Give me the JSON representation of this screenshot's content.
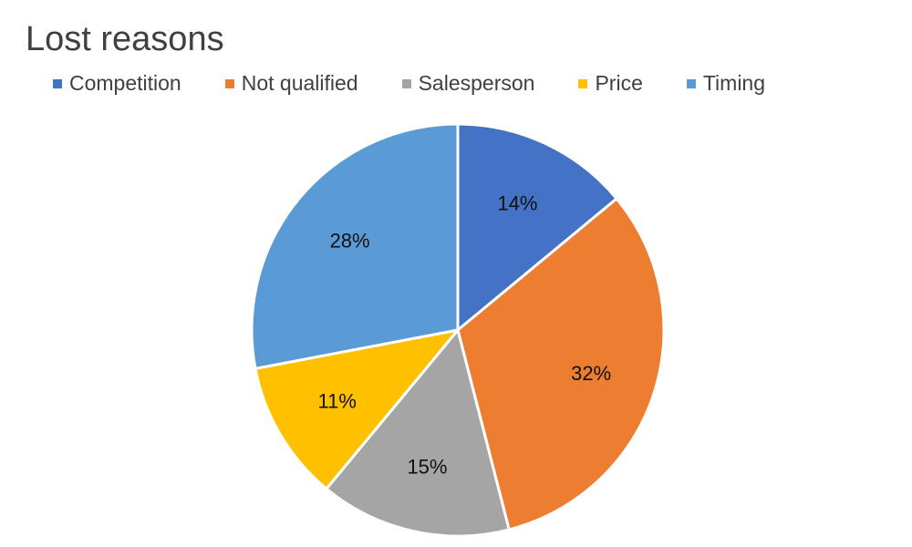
{
  "colors": {
    "competition": "#4472C4",
    "not_qualified": "#ED7D31",
    "salesperson": "#A5A5A5",
    "price": "#FFC000",
    "timing": "#5B9BD5",
    "title_text": "#404040"
  },
  "chart_data": {
    "type": "pie",
    "title": "Lost reasons",
    "legend_position": "top",
    "categories": [
      "Competition",
      "Not qualified",
      "Salesperson",
      "Price",
      "Timing"
    ],
    "values": [
      14,
      32,
      15,
      11,
      28
    ],
    "labels": [
      "14%",
      "32%",
      "15%",
      "11%",
      "28%"
    ],
    "unit": "%"
  }
}
